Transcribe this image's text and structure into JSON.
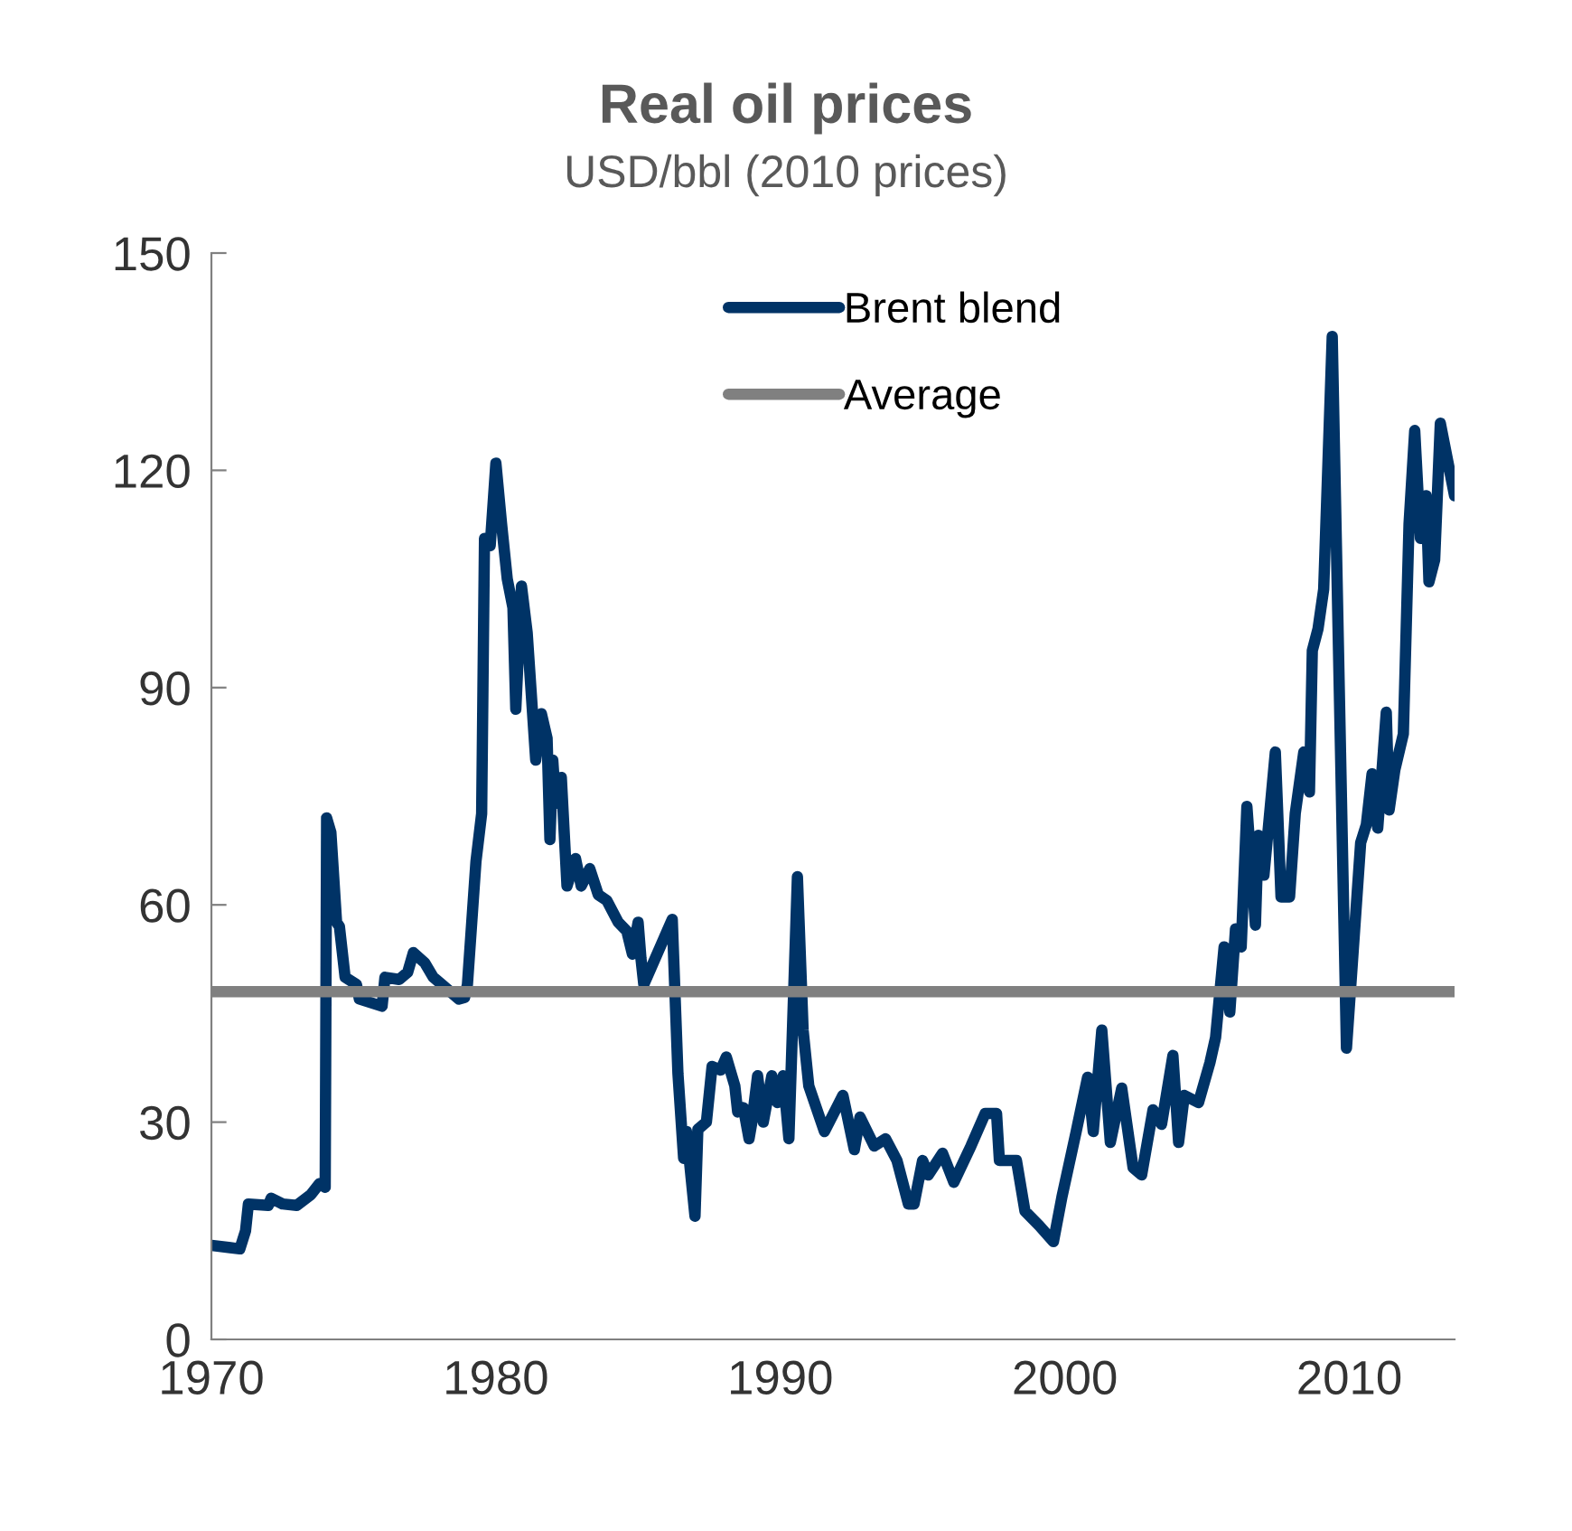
{
  "chart_data": {
    "type": "line",
    "title": "Real oil prices",
    "subtitle": "USD/bbl (2010 prices)",
    "xlim": [
      1970,
      2013.7
    ],
    "xticks": [
      1970,
      1980,
      1990,
      2000,
      2010
    ],
    "ylim": [
      0,
      150
    ],
    "yticks": [
      0,
      30,
      60,
      90,
      120,
      150
    ],
    "grid": false,
    "legend": "top",
    "marker": "none",
    "line_style": "solid",
    "series": [
      {
        "name": "Brent blend",
        "color": "#003366",
        "x": [
          1970,
          1971.0,
          1971.2,
          1971.3,
          1972.0,
          1972.1,
          1972.5,
          1973.0,
          1973.5,
          1973.8,
          1974.0,
          1974.05,
          1974.2,
          1974.4,
          1974.5,
          1974.7,
          1975.1,
          1975.2,
          1976.0,
          1976.1,
          1976.6,
          1976.9,
          1977.1,
          1977.5,
          1977.8,
          1978.1,
          1978.7,
          1978.9,
          1979.0,
          1979.3,
          1979.5,
          1979.6,
          1979.8,
          1980.0,
          1980.2,
          1980.4,
          1980.6,
          1980.7,
          1980.9,
          1981.1,
          1981.4,
          1981.6,
          1981.8,
          1981.9,
          1982.0,
          1982.1,
          1982.3,
          1982.5,
          1982.8,
          1983.0,
          1983.3,
          1983.6,
          1983.9,
          1984.3,
          1984.6,
          1984.8,
          1985.0,
          1985.1,
          1985.2,
          1986.2,
          1986.4,
          1986.6,
          1986.7,
          1987.0,
          1987.1,
          1987.4,
          1987.6,
          1987.9,
          1988.1,
          1988.4,
          1988.5,
          1988.7,
          1988.9,
          1989.0,
          1989.2,
          1989.4,
          1989.7,
          1989.9,
          1990.1,
          1990.3,
          1990.6,
          1990.8,
          1991.0,
          1991.55,
          1992.2,
          1992.6,
          1992.8,
          1993.3,
          1993.7,
          1994.1,
          1994.5,
          1994.7,
          1995.0,
          1995.2,
          1995.7,
          1996.1,
          1996.7,
          1997.2,
          1997.6,
          1997.7,
          1998.3,
          1998.6,
          1999.1,
          1999.6,
          1999.9,
          2000.4,
          2000.8,
          2001.0,
          2001.3,
          2001.6,
          2002.0,
          2002.4,
          2002.7,
          2003.1,
          2003.4,
          2003.8,
          2004.0,
          2004.2,
          2004.7,
          2005.1,
          2005.3,
          2005.6,
          2005.8,
          2006.0,
          2006.2,
          2006.4,
          2006.7,
          2006.8,
          2007.0,
          2007.4,
          2007.6,
          2007.9,
          2008.1,
          2008.4,
          2008.6,
          2008.7,
          2008.9,
          2009.1,
          2009.4,
          2009.9,
          2010.4,
          2010.6,
          2010.8,
          2011.0,
          2011.3,
          2011.4,
          2011.6,
          2011.9,
          2012.1,
          2012.3,
          2012.5,
          2012.7,
          2012.8,
          2013.0,
          2013.2,
          2013.7
        ],
        "values": [
          13,
          12.5,
          15,
          18.7,
          18.5,
          19.5,
          18.7,
          18.5,
          20,
          21.5,
          21,
          72,
          70,
          57.6,
          57,
          50,
          49,
          47,
          46,
          50,
          49.7,
          50.7,
          53.4,
          52,
          50,
          49,
          47,
          47.2,
          49,
          66,
          72.6,
          110.6,
          109.6,
          121,
          112.6,
          105,
          101,
          87,
          104,
          97.6,
          80,
          86.4,
          83,
          69,
          80,
          74,
          77.6,
          62.6,
          66.4,
          62.6,
          65,
          61.4,
          60.6,
          57.6,
          56.4,
          53.2,
          57.6,
          52.6,
          49,
          58,
          36.7,
          25,
          28.7,
          17,
          29,
          30,
          37.7,
          37.2,
          39,
          35,
          31.4,
          32,
          27.7,
          30,
          36.4,
          30,
          36.4,
          32.7,
          36.4,
          27.7,
          63.9,
          42.7,
          35,
          28.7,
          33.7,
          26.2,
          30.7,
          26.7,
          27.7,
          24.7,
          18.7,
          18.7,
          24.7,
          22.7,
          25.7,
          21.7,
          26.7,
          31.2,
          31.2,
          24.7,
          24.7,
          17.7,
          15.7,
          13.5,
          19.7,
          28.7,
          36.2,
          28.7,
          42.7,
          27.2,
          34.7,
          23.7,
          22.7,
          31.7,
          29.7,
          39.2,
          27.2,
          33.7,
          32.7,
          38.2,
          41.7,
          54.2,
          45.2,
          56.7,
          54.2,
          73.6,
          57.2,
          69.6,
          64.1,
          81.1,
          61.1,
          61.1,
          72.6,
          81.1,
          75.6,
          95.1,
          98.1,
          103.6,
          138.5,
          40.2,
          68.6,
          71.1,
          78.1,
          70.6,
          86.6,
          73.1,
          78.6,
          83.6,
          112.6,
          125.5,
          110.6,
          116.5,
          104.6,
          107.6,
          126.5,
          116.5
        ]
      },
      {
        "name": "Average",
        "color": "#808080",
        "x": [
          1970,
          2013.7
        ],
        "values": [
          48,
          48
        ]
      }
    ]
  }
}
